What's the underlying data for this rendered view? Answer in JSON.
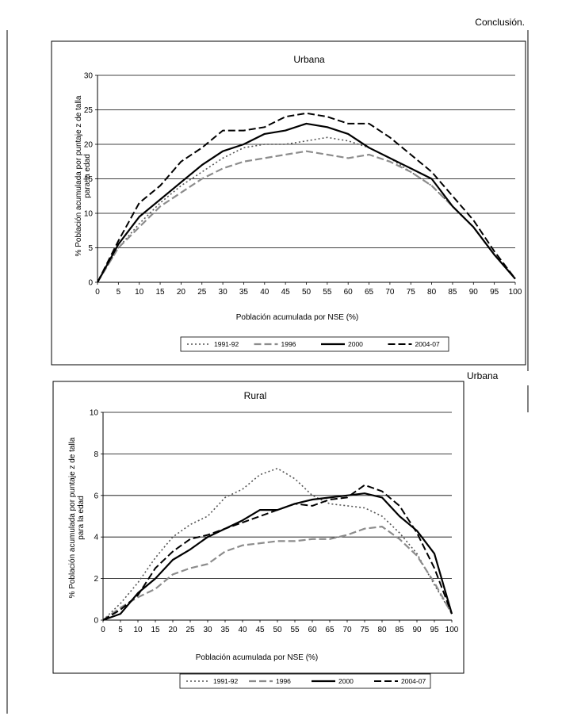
{
  "page": {
    "header_text": "Conclusión.",
    "mid_label": "Urbana"
  },
  "colors": {
    "1991-92": "#555555",
    "1996": "#8c8c8c",
    "2000": "#000000",
    "2004-07": "#000000"
  },
  "chart_data": [
    {
      "type": "line",
      "title": "Urbana",
      "xlabel": "Población acumulada por NSE (%)",
      "ylabel_lines": [
        "% Población acumulada por puntaje z de talla",
        "para la edad"
      ],
      "xlim": [
        0,
        100
      ],
      "ylim": [
        0,
        30
      ],
      "xticks": [
        "0",
        "5",
        "10",
        "15",
        "20",
        "25",
        "30",
        "35",
        "40",
        "45",
        "50",
        "55",
        "60",
        "65",
        "70",
        "75",
        "80",
        "85",
        "90",
        "95",
        "100"
      ],
      "yticks": [
        "0",
        "5",
        "10",
        "15",
        "20",
        "25",
        "30"
      ],
      "grid": "horizontal",
      "legend_position": "bottom",
      "x": [
        0,
        5,
        10,
        15,
        20,
        25,
        30,
        35,
        40,
        45,
        50,
        55,
        60,
        65,
        70,
        75,
        80,
        85,
        90,
        95,
        100
      ],
      "series": [
        {
          "name": "1991-92",
          "style": "dotted",
          "values": [
            0,
            5,
            8.5,
            11.5,
            14,
            16,
            18,
            19.5,
            20,
            20,
            20.5,
            21,
            20.5,
            19.5,
            18,
            16,
            14,
            11,
            8,
            4,
            0.5
          ]
        },
        {
          "name": "1996",
          "style": "longdash-gray",
          "values": [
            0,
            5,
            8,
            11,
            13,
            15,
            16.5,
            17.5,
            18,
            18.5,
            19,
            18.5,
            18,
            18.5,
            17.5,
            16,
            14,
            11,
            8,
            4,
            0.5
          ]
        },
        {
          "name": "2000",
          "style": "solid",
          "values": [
            0,
            5.5,
            9.5,
            12,
            14.5,
            17,
            19,
            20,
            21.5,
            22,
            23,
            22.5,
            21.5,
            19.5,
            18,
            16.5,
            15,
            11,
            8,
            4,
            0.5
          ]
        },
        {
          "name": "2004-07",
          "style": "dash",
          "values": [
            0,
            6,
            11.5,
            14,
            17.5,
            19.5,
            22,
            22,
            22.5,
            24,
            24.5,
            24,
            23,
            23,
            21,
            18.5,
            16,
            12.5,
            9,
            4.5,
            0.5
          ]
        }
      ]
    },
    {
      "type": "line",
      "title": "Rural",
      "xlabel": "Población acumulada por NSE (%)",
      "ylabel_lines": [
        "% Población acumulada por puntaje z de talla",
        "para la edad"
      ],
      "xlim": [
        0,
        100
      ],
      "ylim": [
        0,
        10
      ],
      "xticks": [
        "0",
        "5",
        "10",
        "15",
        "20",
        "25",
        "30",
        "35",
        "40",
        "45",
        "50",
        "55",
        "60",
        "65",
        "70",
        "75",
        "80",
        "85",
        "90",
        "95",
        "100"
      ],
      "yticks": [
        "0",
        "2",
        "4",
        "6",
        "8",
        "10"
      ],
      "grid": "horizontal",
      "legend_position": "bottom",
      "x": [
        0,
        5,
        10,
        15,
        20,
        25,
        30,
        35,
        40,
        45,
        50,
        55,
        60,
        65,
        70,
        75,
        80,
        85,
        90,
        95,
        100
      ],
      "series": [
        {
          "name": "1991-92",
          "style": "dotted",
          "values": [
            0,
            0.8,
            1.8,
            3,
            4,
            4.6,
            5,
            5.9,
            6.3,
            7,
            7.3,
            6.8,
            6,
            5.6,
            5.5,
            5.4,
            5,
            4.2,
            3.2,
            1.7,
            0.3
          ]
        },
        {
          "name": "1996",
          "style": "longdash-gray",
          "values": [
            0,
            0.6,
            1.1,
            1.5,
            2.2,
            2.5,
            2.7,
            3.3,
            3.6,
            3.7,
            3.8,
            3.8,
            3.9,
            3.9,
            4.1,
            4.4,
            4.5,
            3.9,
            3.1,
            1.8,
            0.3
          ]
        },
        {
          "name": "2000",
          "style": "solid",
          "values": [
            0,
            0.3,
            1.3,
            2,
            2.9,
            3.4,
            4,
            4.4,
            4.8,
            5.3,
            5.3,
            5.6,
            5.8,
            5.9,
            6,
            6.1,
            5.9,
            5,
            4.3,
            3.2,
            0.3
          ]
        },
        {
          "name": "2004-07",
          "style": "dash",
          "values": [
            0,
            0.5,
            1.2,
            2.5,
            3.3,
            3.9,
            4.1,
            4.4,
            4.7,
            5,
            5.3,
            5.6,
            5.5,
            5.8,
            5.9,
            6.5,
            6.2,
            5.5,
            4.2,
            2.5,
            0.3
          ]
        }
      ]
    }
  ]
}
